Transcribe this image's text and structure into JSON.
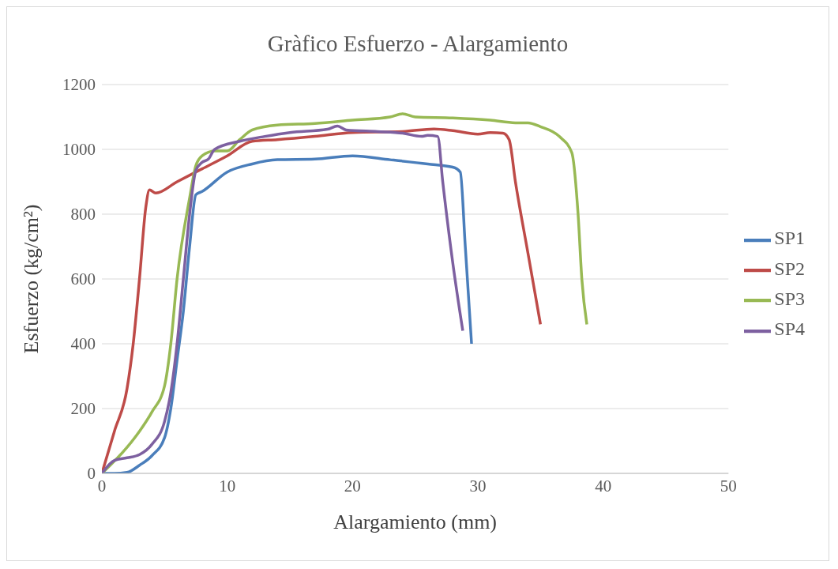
{
  "chart_data": {
    "type": "line",
    "title": "Gràfico Esfuerzo - Alargamiento",
    "xlabel": "Alargamiento (mm)",
    "ylabel": "Esfuerzo (kg/cm²)",
    "xlim": [
      0,
      50
    ],
    "xticks": [
      0,
      10,
      20,
      30,
      40,
      50
    ],
    "ylim": [
      0,
      1200
    ],
    "yticks": [
      0,
      200,
      400,
      600,
      800,
      1000,
      1200
    ],
    "grid": "y",
    "legend": "right",
    "marker": "none",
    "line_style": "solid",
    "series": [
      {
        "name": "SP1",
        "color": "#4a7ebb",
        "x": [
          0,
          1,
          2,
          3,
          4,
          5,
          5.5,
          6,
          6.5,
          7,
          7.5,
          8,
          10,
          12,
          14,
          17,
          20,
          23,
          26,
          28,
          28.6,
          29,
          29.5
        ],
        "values": [
          0,
          0,
          3,
          25,
          55,
          110,
          200,
          350,
          500,
          700,
          860,
          870,
          930,
          955,
          968,
          970,
          980,
          968,
          955,
          945,
          930,
          700,
          400
        ]
      },
      {
        "name": "SP2",
        "color": "#be4b48",
        "x": [
          0,
          1,
          2,
          2.5,
          3,
          3.5,
          3.8,
          4.3,
          6,
          8,
          10,
          12,
          14,
          17,
          20,
          24,
          26.5,
          28,
          30,
          31,
          32,
          32.5,
          33,
          34,
          35
        ],
        "values": [
          0,
          130,
          260,
          400,
          600,
          820,
          875,
          865,
          900,
          940,
          980,
          1025,
          1030,
          1040,
          1052,
          1055,
          1063,
          1058,
          1047,
          1052,
          1050,
          1030,
          900,
          680,
          460
        ]
      },
      {
        "name": "SP3",
        "color": "#98b954",
        "x": [
          0,
          2,
          3,
          4,
          5,
          5.5,
          6,
          7,
          7.5,
          8,
          9,
          10,
          11,
          12,
          14,
          17,
          20,
          23,
          24,
          25,
          28,
          31,
          33,
          34,
          35,
          36.5,
          37.5,
          38,
          38.3,
          38.7
        ],
        "values": [
          0,
          80,
          130,
          190,
          270,
          400,
          600,
          850,
          950,
          980,
          995,
          995,
          1030,
          1060,
          1075,
          1080,
          1090,
          1100,
          1110,
          1100,
          1097,
          1090,
          1082,
          1082,
          1070,
          1040,
          990,
          800,
          600,
          460
        ]
      },
      {
        "name": "SP4",
        "color": "#7d60a0",
        "x": [
          0,
          1,
          2,
          3,
          4,
          5,
          5.5,
          6,
          6.5,
          7,
          7.5,
          8,
          8.5,
          9,
          11,
          13,
          15,
          18,
          18.8,
          19.5,
          22,
          24,
          25.5,
          26,
          26.8,
          27.2,
          28,
          28.8
        ],
        "values": [
          0,
          40,
          48,
          58,
          90,
          160,
          250,
          400,
          600,
          800,
          935,
          960,
          970,
          1000,
          1025,
          1040,
          1052,
          1062,
          1072,
          1060,
          1055,
          1050,
          1040,
          1043,
          1040,
          900,
          650,
          440
        ]
      }
    ]
  }
}
